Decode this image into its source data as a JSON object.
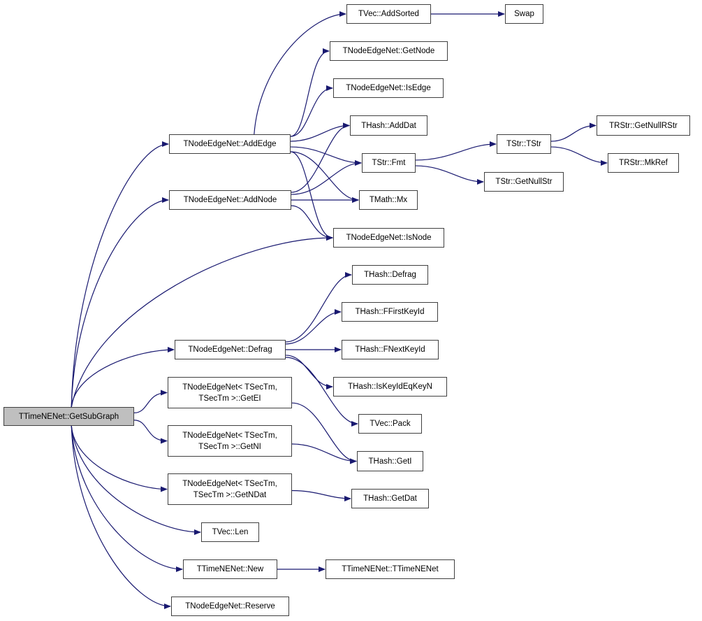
{
  "colors": {
    "edge": "#191970",
    "node_border": "#404040",
    "root_fill": "#bfbfbf",
    "node_fill": "#ffffff"
  },
  "nodes": [
    {
      "id": "getsubgraph",
      "lines": [
        "TTimeNENet::GetSubGraph"
      ],
      "root": true
    },
    {
      "id": "addedge",
      "lines": [
        "TNodeEdgeNet::AddEdge"
      ]
    },
    {
      "id": "addnode",
      "lines": [
        "TNodeEdgeNet::AddNode"
      ]
    },
    {
      "id": "defrag",
      "lines": [
        "TNodeEdgeNet::Defrag"
      ]
    },
    {
      "id": "getei",
      "lines": [
        "TNodeEdgeNet< TSecTm,",
        "TSecTm >::GetEI"
      ]
    },
    {
      "id": "getni",
      "lines": [
        "TNodeEdgeNet< TSecTm,",
        "TSecTm >::GetNI"
      ]
    },
    {
      "id": "getndat",
      "lines": [
        "TNodeEdgeNet< TSecTm,",
        "TSecTm >::GetNDat"
      ]
    },
    {
      "id": "len",
      "lines": [
        "TVec::Len"
      ]
    },
    {
      "id": "new",
      "lines": [
        "TTimeNENet::New"
      ]
    },
    {
      "id": "reserve",
      "lines": [
        "TNodeEdgeNet::Reserve"
      ]
    },
    {
      "id": "addsorted",
      "lines": [
        "TVec::AddSorted"
      ]
    },
    {
      "id": "swap",
      "lines": [
        "Swap"
      ]
    },
    {
      "id": "getnode",
      "lines": [
        "TNodeEdgeNet::GetNode"
      ]
    },
    {
      "id": "isedge",
      "lines": [
        "TNodeEdgeNet::IsEdge"
      ]
    },
    {
      "id": "adddat",
      "lines": [
        "THash::AddDat"
      ]
    },
    {
      "id": "fmt",
      "lines": [
        "TStr::Fmt"
      ]
    },
    {
      "id": "tstr",
      "lines": [
        "TStr::TStr"
      ]
    },
    {
      "id": "getnullstr",
      "lines": [
        "TStr::GetNullStr"
      ]
    },
    {
      "id": "getnullrstr",
      "lines": [
        "TRStr::GetNullRStr"
      ]
    },
    {
      "id": "mkref",
      "lines": [
        "TRStr::MkRef"
      ]
    },
    {
      "id": "mx",
      "lines": [
        "TMath::Mx"
      ]
    },
    {
      "id": "isnode",
      "lines": [
        "TNodeEdgeNet::IsNode"
      ]
    },
    {
      "id": "hashdefrag",
      "lines": [
        "THash::Defrag"
      ]
    },
    {
      "id": "ffirstkeyid",
      "lines": [
        "THash::FFirstKeyId"
      ]
    },
    {
      "id": "fnextkeyid",
      "lines": [
        "THash::FNextKeyId"
      ]
    },
    {
      "id": "iskeyideqkeyn",
      "lines": [
        "THash::IsKeyIdEqKeyN"
      ]
    },
    {
      "id": "pack",
      "lines": [
        "TVec::Pack"
      ]
    },
    {
      "id": "geti",
      "lines": [
        "THash::GetI"
      ]
    },
    {
      "id": "getdat",
      "lines": [
        "THash::GetDat"
      ]
    },
    {
      "id": "ttimenenet",
      "lines": [
        "TTimeNENet::TTimeNENet"
      ]
    }
  ],
  "edges": [
    [
      "getsubgraph",
      "addedge"
    ],
    [
      "getsubgraph",
      "addnode"
    ],
    [
      "getsubgraph",
      "isnode"
    ],
    [
      "getsubgraph",
      "defrag"
    ],
    [
      "getsubgraph",
      "getei"
    ],
    [
      "getsubgraph",
      "getni"
    ],
    [
      "getsubgraph",
      "getndat"
    ],
    [
      "getsubgraph",
      "len"
    ],
    [
      "getsubgraph",
      "new"
    ],
    [
      "getsubgraph",
      "reserve"
    ],
    [
      "addedge",
      "addsorted"
    ],
    [
      "addedge",
      "getnode"
    ],
    [
      "addedge",
      "isedge"
    ],
    [
      "addedge",
      "adddat"
    ],
    [
      "addedge",
      "fmt"
    ],
    [
      "addedge",
      "mx"
    ],
    [
      "addedge",
      "isnode"
    ],
    [
      "addnode",
      "adddat"
    ],
    [
      "addnode",
      "fmt"
    ],
    [
      "addnode",
      "mx"
    ],
    [
      "addnode",
      "isnode"
    ],
    [
      "addsorted",
      "swap"
    ],
    [
      "fmt",
      "tstr"
    ],
    [
      "fmt",
      "getnullstr"
    ],
    [
      "tstr",
      "getnullrstr"
    ],
    [
      "tstr",
      "mkref"
    ],
    [
      "defrag",
      "hashdefrag"
    ],
    [
      "defrag",
      "ffirstkeyid"
    ],
    [
      "defrag",
      "fnextkeyid"
    ],
    [
      "defrag",
      "iskeyideqkeyn"
    ],
    [
      "defrag",
      "pack"
    ],
    [
      "getei",
      "geti"
    ],
    [
      "getni",
      "geti"
    ],
    [
      "getndat",
      "getdat"
    ],
    [
      "new",
      "ttimenenet"
    ]
  ]
}
